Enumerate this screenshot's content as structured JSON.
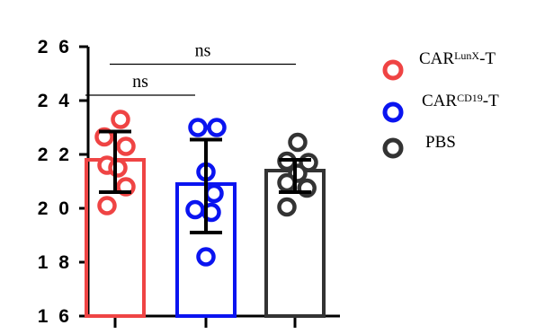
{
  "chart_data": {
    "type": "bar",
    "ylim": [
      16,
      26
    ],
    "yticks": [
      16,
      18,
      20,
      22,
      24,
      26
    ],
    "ytick_labels": [
      "1 6",
      "1 8",
      "2 0",
      "2 2",
      "2 4",
      "2 6"
    ],
    "grid": false,
    "legend_position": "right",
    "series": [
      {
        "label_main": "CAR",
        "label_sup": "LunX",
        "label_suffix": "-T",
        "color": "#ef4444",
        "mean": 21.8,
        "sd_low": 20.6,
        "sd_high": 22.85,
        "points": [
          {
            "x": 0.1,
            "y": 23.3
          },
          {
            "x": -0.2,
            "y": 22.65
          },
          {
            "x": 0.2,
            "y": 22.3
          },
          {
            "x": -0.15,
            "y": 21.6
          },
          {
            "x": 0.05,
            "y": 21.5
          },
          {
            "x": 0.2,
            "y": 20.8
          },
          {
            "x": -0.15,
            "y": 20.1
          }
        ]
      },
      {
        "label_main": "CAR",
        "label_sup": "CD19",
        "label_suffix": "-T",
        "color": "#0a14f0",
        "mean": 20.9,
        "sd_low": 19.1,
        "sd_high": 22.55,
        "points": [
          {
            "x": -0.15,
            "y": 23.0
          },
          {
            "x": 0.2,
            "y": 23.0
          },
          {
            "x": 0.0,
            "y": 21.35
          },
          {
            "x": 0.15,
            "y": 20.55
          },
          {
            "x": -0.2,
            "y": 19.95
          },
          {
            "x": 0.1,
            "y": 19.85
          },
          {
            "x": 0.0,
            "y": 18.2
          }
        ]
      },
      {
        "label_main": "PBS",
        "label_sup": "",
        "label_suffix": "",
        "color": "#333333",
        "mean": 21.4,
        "sd_low": 20.6,
        "sd_high": 21.8,
        "points": [
          {
            "x": 0.05,
            "y": 22.45
          },
          {
            "x": -0.15,
            "y": 21.75
          },
          {
            "x": 0.25,
            "y": 21.7
          },
          {
            "x": 0.05,
            "y": 21.3
          },
          {
            "x": -0.15,
            "y": 20.95
          },
          {
            "x": 0.22,
            "y": 20.75
          },
          {
            "x": -0.15,
            "y": 20.05
          }
        ]
      }
    ],
    "annotations": [
      {
        "label": "ns",
        "from": 0,
        "to": 1,
        "y": 24.2
      },
      {
        "label": "ns",
        "from": 0,
        "to": 2,
        "y": 25.35
      }
    ]
  }
}
